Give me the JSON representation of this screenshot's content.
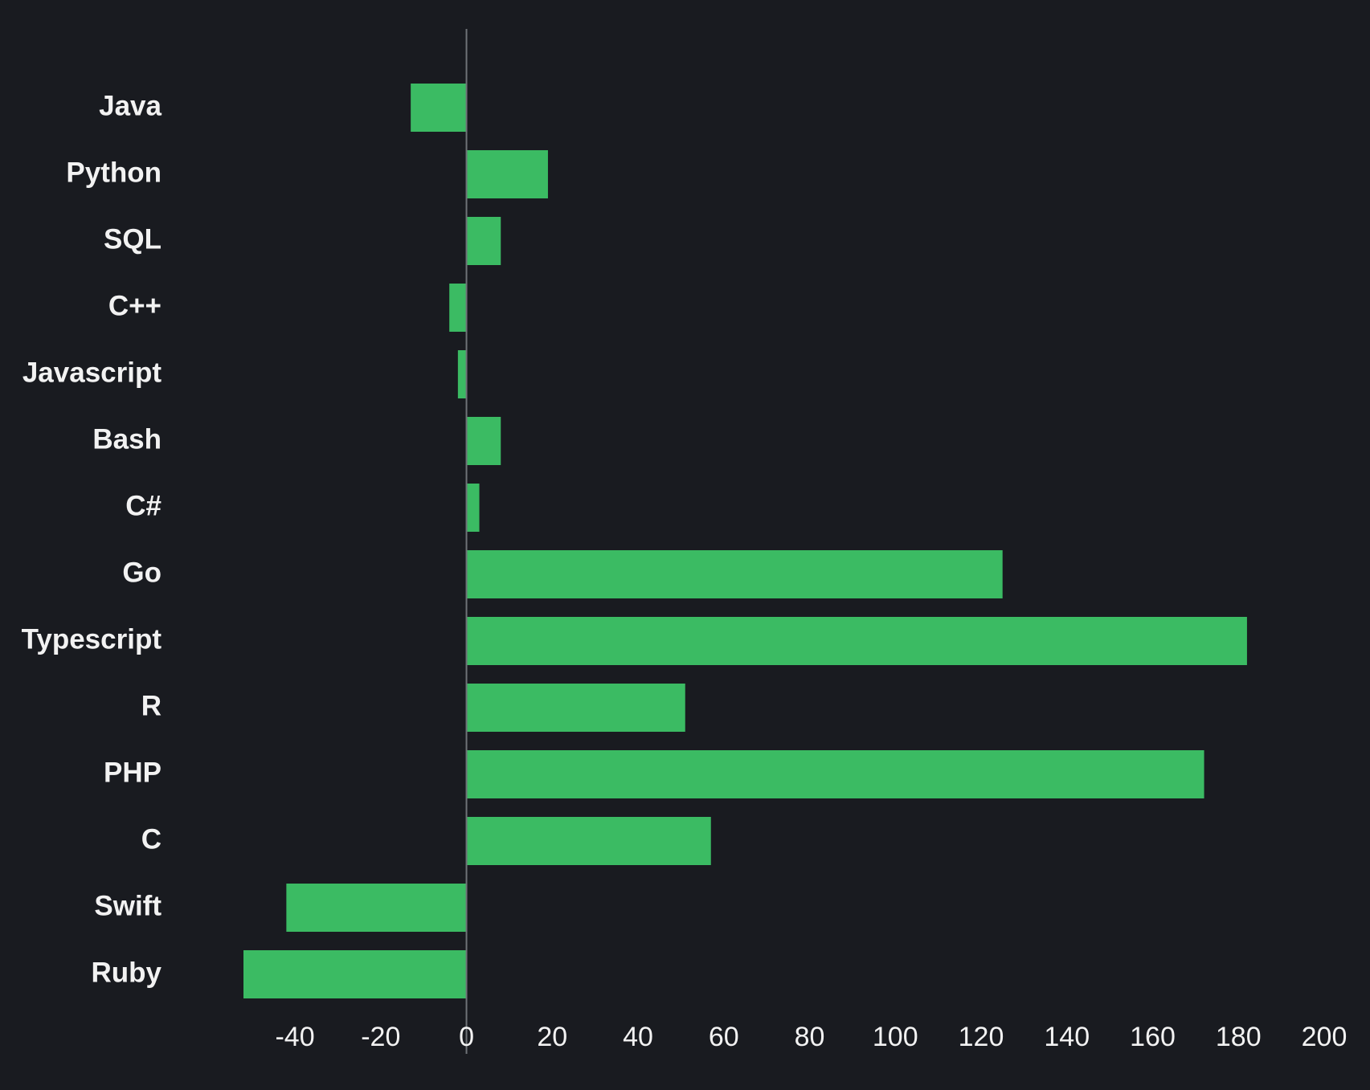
{
  "chart_data": {
    "type": "bar",
    "orientation": "horizontal",
    "title": "",
    "xlabel": "",
    "ylabel": "",
    "categories": [
      "Java",
      "Python",
      "SQL",
      "C++",
      "Javascript",
      "Bash",
      "C#",
      "Go",
      "Typescript",
      "R",
      "PHP",
      "C",
      "Swift",
      "Ruby"
    ],
    "values": [
      -13,
      19,
      8,
      -4,
      -2,
      8,
      3,
      125,
      182,
      51,
      172,
      57,
      -42,
      -52
    ],
    "xlim": [
      -52,
      200
    ],
    "xticks": [
      -40,
      -20,
      0,
      20,
      40,
      60,
      80,
      100,
      120,
      140,
      160,
      180,
      200
    ],
    "xtick_labels": [
      "-40",
      "-20",
      "0",
      "20",
      "40",
      "60",
      "80",
      "100",
      "120",
      "140",
      "160",
      "180",
      "200"
    ],
    "grid": false,
    "legend": "none",
    "colors": {
      "background": "#191b20",
      "bar": "#3bbb63",
      "axis": "#6f7378",
      "text": "#f2f2f2"
    }
  }
}
